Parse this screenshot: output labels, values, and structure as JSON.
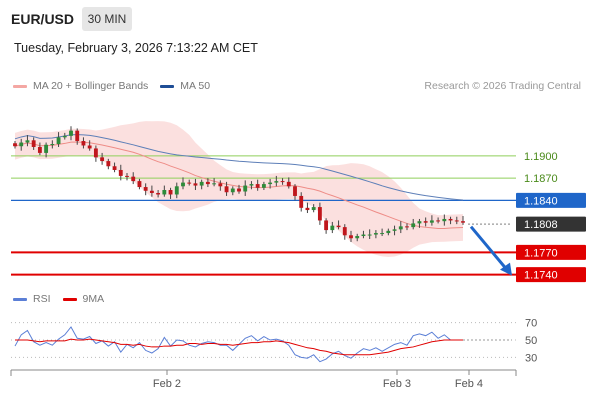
{
  "header": {
    "symbol": "EUR/USD",
    "timeframe": "30 MIN",
    "datetime": "Tuesday, February 3, 2026 7:13:22 AM CET"
  },
  "legend": {
    "ma20": {
      "label": "MA 20 + Bollinger Bands",
      "color": "#f4a7a3"
    },
    "ma50": {
      "label": "MA 50",
      "color": "#1f4e96"
    }
  },
  "credit": "Research © 2026 Trading Central",
  "rsi_legend": {
    "rsi": {
      "label": "RSI",
      "color": "#5b7fd6"
    },
    "ma9": {
      "label": "9MA",
      "color": "#e00000"
    }
  },
  "chart_data": {
    "type": "candlestick",
    "ylim": [
      1.1726,
      1.1978
    ],
    "x_ticks": [
      "Feb 2",
      "Feb 3",
      "Feb 4"
    ],
    "levels": [
      {
        "value": 1.19,
        "label": "1.1900",
        "color": "#8fcf5a",
        "box": false
      },
      {
        "value": 1.187,
        "label": "1.1870",
        "color": "#8fcf5a",
        "box": false
      },
      {
        "value": 1.184,
        "label": "1.1840",
        "color": "#1f66c9",
        "box": true
      },
      {
        "value": 1.1808,
        "label": "1.1808",
        "color": "#333333",
        "box": true,
        "dotted": true
      },
      {
        "value": 1.177,
        "label": "1.1770",
        "color": "#e00000",
        "box": true
      },
      {
        "value": 1.174,
        "label": "1.1740",
        "color": "#e00000",
        "box": true
      }
    ],
    "closes": [
      1.1913,
      1.1918,
      1.1921,
      1.1912,
      1.1904,
      1.1915,
      1.1916,
      1.1925,
      1.1927,
      1.1934,
      1.192,
      1.1914,
      1.191,
      1.1898,
      1.1893,
      1.1886,
      1.1881,
      1.1873,
      1.1872,
      1.1866,
      1.1858,
      1.1853,
      1.185,
      1.1848,
      1.1854,
      1.1848,
      1.1859,
      1.1864,
      1.1863,
      1.186,
      1.1865,
      1.1862,
      1.1863,
      1.1859,
      1.1851,
      1.1856,
      1.1852,
      1.186,
      1.1862,
      1.1857,
      1.1862,
      1.1864,
      1.1866,
      1.1865,
      1.1859,
      1.1846,
      1.183,
      1.1827,
      1.1831,
      1.1813,
      1.18,
      1.1806,
      1.1804,
      1.1793,
      1.1789,
      1.1792,
      1.1794,
      1.1794,
      1.1796,
      1.1796,
      1.1799,
      1.1801,
      1.1805,
      1.1804,
      1.1809,
      1.1812,
      1.181,
      1.1813,
      1.1812,
      1.1815,
      1.1813,
      1.1812,
      1.181
    ],
    "rsi": {
      "ylim": [
        20,
        80
      ],
      "ticks": [
        70,
        50,
        30
      ],
      "values": [
        43,
        56,
        61,
        48,
        44,
        47,
        44,
        51,
        56,
        65,
        52,
        51,
        54,
        46,
        49,
        43,
        48,
        36,
        45,
        41,
        47,
        38,
        35,
        40,
        53,
        43,
        50,
        49,
        44,
        42,
        46,
        48,
        47,
        44,
        44,
        38,
        45,
        52,
        55,
        49,
        54,
        50,
        51,
        49,
        44,
        33,
        30,
        29,
        33,
        25,
        28,
        34,
        37,
        32,
        29,
        35,
        40,
        38,
        41,
        37,
        41,
        45,
        47,
        44,
        55,
        57,
        55,
        59,
        52,
        56,
        50,
        50,
        50
      ],
      "ma9": [
        50,
        50,
        50,
        49,
        48,
        49,
        49,
        49,
        49,
        51,
        50,
        50,
        51,
        50,
        49,
        48,
        47,
        45,
        45,
        44,
        45,
        43,
        42,
        42,
        43,
        43,
        44,
        44,
        46,
        46,
        45,
        46,
        46,
        45,
        45,
        44,
        45,
        46,
        47,
        47,
        48,
        48,
        49,
        48,
        47,
        45,
        43,
        41,
        40,
        38,
        37,
        35,
        34,
        33,
        33,
        33,
        33,
        33,
        34,
        35,
        36,
        38,
        40,
        41,
        42,
        44,
        46,
        48,
        49,
        50,
        50,
        50,
        50
      ]
    }
  }
}
